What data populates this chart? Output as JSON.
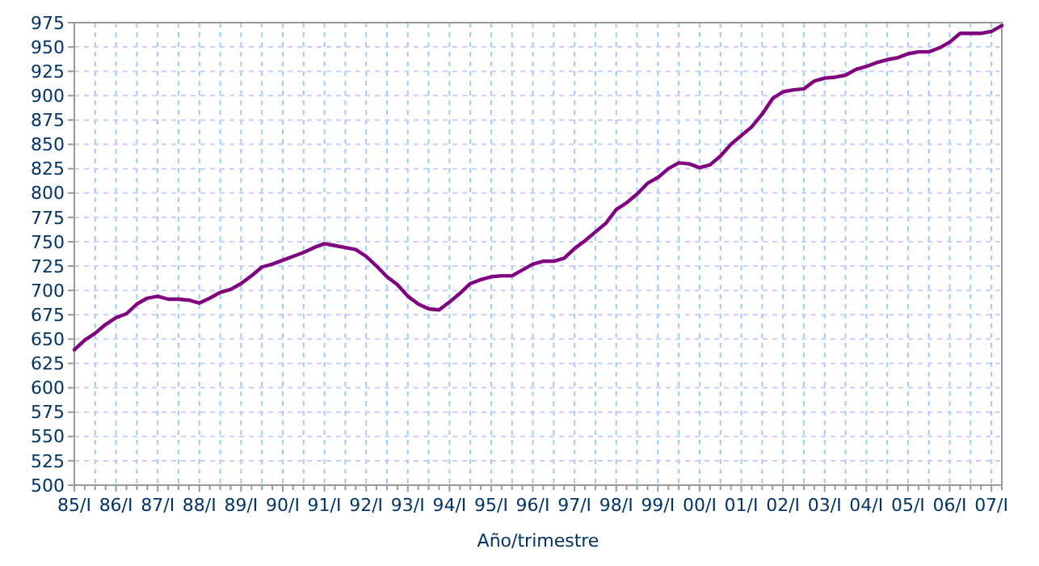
{
  "chart_data": {
    "type": "line",
    "xlabel": "Año/trimestre",
    "categories": [
      "85/I",
      null,
      null,
      null,
      "86/I",
      null,
      null,
      null,
      "87/I",
      null,
      null,
      null,
      "88/I",
      null,
      null,
      null,
      "89/I",
      null,
      null,
      null,
      "90/I",
      null,
      null,
      null,
      "91/I",
      null,
      null,
      null,
      "92/I",
      null,
      null,
      null,
      "93/I",
      null,
      null,
      null,
      "94/I",
      null,
      null,
      null,
      "95/I",
      null,
      null,
      null,
      "96/I",
      null,
      null,
      null,
      "97/I",
      null,
      null,
      null,
      "98/I",
      null,
      null,
      null,
      "99/I",
      null,
      null,
      null,
      "00/I",
      null,
      null,
      null,
      "01/I",
      null,
      null,
      null,
      "02/I",
      null,
      null,
      null,
      "03/I",
      null,
      null,
      null,
      "04/I",
      null,
      null,
      null,
      "05/I",
      null,
      null,
      null,
      "06/I",
      null,
      null,
      null,
      "07/I",
      null
    ],
    "series": [
      {
        "color": "#800080",
        "values": [
          639,
          649,
          656,
          665,
          672,
          676,
          686,
          692,
          694,
          691,
          691,
          690,
          687,
          692,
          698,
          701,
          707,
          715,
          724,
          727,
          731,
          735,
          739,
          744,
          748,
          746,
          744,
          742,
          735,
          725,
          714,
          706,
          694,
          686,
          681,
          680,
          688,
          697,
          707,
          711,
          714,
          715,
          715,
          721,
          727,
          730,
          730,
          733,
          743,
          751,
          760,
          769,
          783,
          790,
          799,
          810,
          816,
          825,
          831,
          830,
          826,
          829,
          838,
          850,
          859,
          868,
          881,
          897,
          904,
          906,
          907,
          915,
          918,
          919,
          921,
          927,
          930,
          934,
          937,
          939,
          943,
          945,
          945,
          949,
          955,
          964,
          964,
          964,
          966,
          972
        ]
      }
    ],
    "ylim": [
      500,
      975
    ],
    "yticks": [
      500,
      525,
      550,
      575,
      600,
      625,
      650,
      675,
      700,
      725,
      750,
      775,
      800,
      825,
      850,
      875,
      900,
      925,
      950,
      975
    ],
    "grid": true,
    "marker": "none",
    "line_style": "solid"
  }
}
